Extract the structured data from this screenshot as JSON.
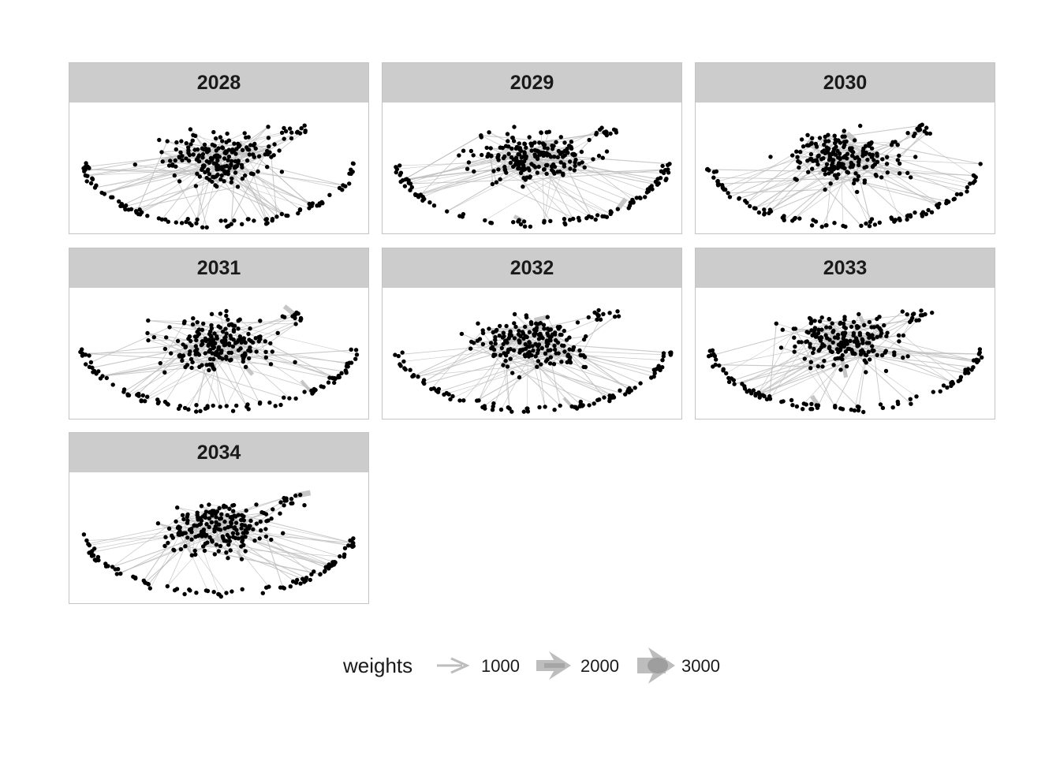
{
  "panels": [
    {
      "label": "2028"
    },
    {
      "label": "2029"
    },
    {
      "label": "2030"
    },
    {
      "label": "2031"
    },
    {
      "label": "2032"
    },
    {
      "label": "2033"
    },
    {
      "label": "2034"
    }
  ],
  "legend": {
    "title": "weights",
    "entries": [
      {
        "label": "1000",
        "value": 1000
      },
      {
        "label": "2000",
        "value": 2000
      },
      {
        "label": "3000",
        "value": 3000
      }
    ]
  },
  "colors": {
    "strip": "#cccccc",
    "node": "#000000",
    "edge": "#bdbdbd",
    "panel_border": "#c4c4c4"
  }
}
